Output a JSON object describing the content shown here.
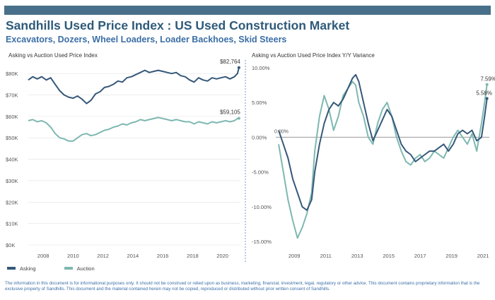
{
  "header": {
    "title": "Sandhills Used Price Index : US Used Construction Market",
    "subtitle": "Excavators, Dozers, Wheel Loaders, Loader Backhoes, Skid Steers"
  },
  "colors": {
    "bar": "#49708a",
    "title": "#2e5a7a",
    "subtitle": "#3a6ea5",
    "asking": "#36587a",
    "auction": "#7eb8b0",
    "grid": "#e2e2e2",
    "divider": "#8aa8d0",
    "footer": "#3b6fa8"
  },
  "legend": {
    "asking": "Asking",
    "auction": "Auction"
  },
  "footer": "The information in this document is for informational purposes only.  It should not be construed or relied upon as business, marketing, financial, investment, legal, regulatory or other advice. This document contains proprietary information that is the exclusive property of Sandhills. This document and the material contained herein may not be copied, reproduced or distributed without prior written consent of Sandhills.",
  "chart_data": [
    {
      "type": "line",
      "title": "Asking vs Auction Used Price Index",
      "xlim": [
        2007.0,
        2021.2
      ],
      "ylim": [
        0,
        85000
      ],
      "x_ticks": [
        2008,
        2010,
        2012,
        2014,
        2016,
        2018,
        2020
      ],
      "y_ticks": [
        0,
        10000,
        20000,
        30000,
        40000,
        50000,
        60000,
        70000,
        80000
      ],
      "y_tick_labels": [
        "$0K",
        "$10K",
        "$20K",
        "$30K",
        "$40K",
        "$50K",
        "$60K",
        "$70K",
        "$80K"
      ],
      "series": [
        {
          "name": "Asking",
          "x": [
            2007.0,
            2007.3,
            2007.6,
            2007.9,
            2008.2,
            2008.5,
            2008.8,
            2009.1,
            2009.4,
            2009.7,
            2010.0,
            2010.3,
            2010.6,
            2010.9,
            2011.2,
            2011.5,
            2011.8,
            2012.1,
            2012.4,
            2012.7,
            2013.0,
            2013.3,
            2013.6,
            2013.9,
            2014.2,
            2014.5,
            2014.8,
            2015.1,
            2015.4,
            2015.7,
            2016.0,
            2016.3,
            2016.6,
            2016.9,
            2017.2,
            2017.5,
            2017.8,
            2018.1,
            2018.4,
            2018.7,
            2019.0,
            2019.3,
            2019.6,
            2019.9,
            2020.2,
            2020.5,
            2020.8,
            2021.0,
            2021.1
          ],
          "values": [
            77000,
            78500,
            77500,
            78500,
            77000,
            78000,
            75000,
            72000,
            70000,
            69000,
            68500,
            69500,
            68000,
            66000,
            67500,
            70500,
            71500,
            73500,
            74000,
            75000,
            76500,
            76000,
            78000,
            78500,
            79500,
            80500,
            81500,
            80500,
            81000,
            81500,
            81000,
            80500,
            80000,
            80500,
            79000,
            78500,
            77000,
            76000,
            78000,
            77000,
            76500,
            78000,
            77500,
            78000,
            78500,
            77500,
            78500,
            80000,
            82764
          ],
          "end_label": "$82,764"
        },
        {
          "name": "Auction",
          "x": [
            2007.0,
            2007.3,
            2007.6,
            2007.9,
            2008.2,
            2008.5,
            2008.8,
            2009.1,
            2009.4,
            2009.7,
            2010.0,
            2010.3,
            2010.6,
            2010.9,
            2011.2,
            2011.5,
            2011.8,
            2012.1,
            2012.4,
            2012.7,
            2013.0,
            2013.3,
            2013.6,
            2013.9,
            2014.2,
            2014.5,
            2014.8,
            2015.1,
            2015.4,
            2015.7,
            2016.0,
            2016.3,
            2016.6,
            2016.9,
            2017.2,
            2017.5,
            2017.8,
            2018.1,
            2018.4,
            2018.7,
            2019.0,
            2019.3,
            2019.6,
            2019.9,
            2020.2,
            2020.5,
            2020.8,
            2021.0,
            2021.1
          ],
          "values": [
            58000,
            58500,
            57500,
            58000,
            57000,
            55000,
            52000,
            50000,
            49500,
            48500,
            48500,
            50000,
            51500,
            52000,
            51000,
            51500,
            52500,
            53500,
            54000,
            55000,
            55500,
            56500,
            56000,
            57000,
            57500,
            58500,
            58000,
            58500,
            59000,
            59500,
            59000,
            58500,
            58000,
            58500,
            58000,
            57500,
            57500,
            56500,
            57500,
            57000,
            56500,
            57500,
            57000,
            57500,
            58000,
            57500,
            58000,
            59000,
            59105
          ],
          "end_label": "$59,105"
        }
      ]
    },
    {
      "type": "line",
      "title": "Asking vs Auction Used Price Index Y/Y Variance",
      "xlim": [
        2008.0,
        2021.4
      ],
      "ylim": [
        -15.5,
        10.0
      ],
      "x_ticks": [
        2009,
        2011,
        2013,
        2015,
        2017,
        2019,
        2021
      ],
      "y_ticks": [
        10,
        5,
        0,
        -5,
        -10,
        -15
      ],
      "y_tick_labels": [
        "10.00%",
        "5.00%",
        "0.00%",
        "-5.00%",
        "-10.00%",
        "-15.00%"
      ],
      "zero_label": "0.00%",
      "series": [
        {
          "name": "Asking",
          "x": [
            2008.0,
            2008.3,
            2008.6,
            2008.9,
            2009.2,
            2009.5,
            2009.8,
            2010.1,
            2010.3,
            2010.6,
            2010.9,
            2011.2,
            2011.5,
            2011.8,
            2012.1,
            2012.4,
            2012.7,
            2012.9,
            2013.1,
            2013.4,
            2013.7,
            2014.0,
            2014.3,
            2014.6,
            2014.9,
            2015.2,
            2015.5,
            2015.8,
            2016.1,
            2016.4,
            2016.7,
            2017.0,
            2017.3,
            2017.6,
            2017.9,
            2018.2,
            2018.5,
            2018.8,
            2019.1,
            2019.4,
            2019.7,
            2020.0,
            2020.3,
            2020.6,
            2020.9,
            2021.1,
            2021.25
          ],
          "values": [
            1.0,
            -1.0,
            -3.0,
            -6.0,
            -8.0,
            -10.0,
            -10.5,
            -9.0,
            -5.0,
            -1.0,
            2.0,
            4.0,
            5.0,
            4.5,
            5.5,
            7.0,
            8.5,
            9.0,
            8.0,
            5.0,
            2.0,
            -0.5,
            1.0,
            2.5,
            4.0,
            3.0,
            1.0,
            -1.0,
            -2.0,
            -2.5,
            -3.5,
            -3.0,
            -2.5,
            -2.0,
            -2.0,
            -1.5,
            -1.0,
            -2.0,
            -1.0,
            0.5,
            1.0,
            0.5,
            1.0,
            -0.5,
            0.0,
            3.0,
            5.58
          ],
          "end_label": "5.58%"
        },
        {
          "name": "Auction",
          "x": [
            2008.0,
            2008.3,
            2008.6,
            2008.9,
            2009.2,
            2009.5,
            2009.8,
            2010.1,
            2010.3,
            2010.6,
            2010.9,
            2011.2,
            2011.5,
            2011.8,
            2012.1,
            2012.4,
            2012.7,
            2012.9,
            2013.1,
            2013.4,
            2013.7,
            2014.0,
            2014.3,
            2014.6,
            2014.9,
            2015.2,
            2015.5,
            2015.8,
            2016.1,
            2016.4,
            2016.7,
            2017.0,
            2017.3,
            2017.6,
            2017.9,
            2018.2,
            2018.5,
            2018.8,
            2019.1,
            2019.4,
            2019.7,
            2020.0,
            2020.3,
            2020.6,
            2020.9,
            2021.1,
            2021.25
          ],
          "values": [
            -1.0,
            -5.0,
            -9.0,
            -12.0,
            -14.5,
            -13.0,
            -11.0,
            -8.0,
            -2.0,
            3.0,
            6.0,
            4.0,
            1.0,
            3.0,
            6.0,
            7.0,
            8.0,
            7.5,
            5.0,
            3.0,
            0.0,
            -1.0,
            2.0,
            4.0,
            5.0,
            3.0,
            0.0,
            -2.0,
            -3.5,
            -4.0,
            -3.0,
            -2.5,
            -3.5,
            -3.0,
            -2.0,
            -2.5,
            -3.0,
            -1.5,
            0.0,
            1.0,
            0.0,
            -1.0,
            0.5,
            -2.0,
            2.0,
            5.0,
            7.59
          ],
          "end_label": "7.59%"
        }
      ]
    }
  ]
}
